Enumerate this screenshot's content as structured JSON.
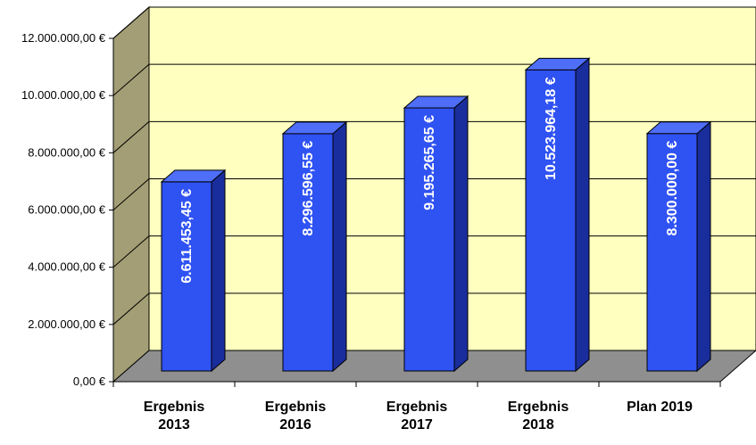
{
  "chart_data": {
    "type": "bar",
    "title": "",
    "xlabel": "",
    "ylabel": "",
    "categories": [
      [
        "Ergebnis",
        "2013"
      ],
      [
        "Ergebnis",
        "2016"
      ],
      [
        "Ergebnis",
        "2017"
      ],
      [
        "Ergebnis",
        "2018"
      ],
      [
        "Plan 2019"
      ]
    ],
    "values": [
      6611453.45,
      8296596.55,
      9195265.65,
      10523964.18,
      8300000.0
    ],
    "value_labels": [
      "6.611.453,45 €",
      "8.296.596,55 €",
      "9.195.265,65 €",
      "10.523.964,18 €",
      "8.300.000,00 €"
    ],
    "ylim": [
      0,
      12000000
    ],
    "yticks": [
      {
        "value": 0,
        "label": "0,00 €"
      },
      {
        "value": 2000000,
        "label": "2.000.000,00 €"
      },
      {
        "value": 4000000,
        "label": "4.000.000,00 €"
      },
      {
        "value": 6000000,
        "label": "6.000.000,00 €"
      },
      {
        "value": 8000000,
        "label": "8.000.000,00 €"
      },
      {
        "value": 10000000,
        "label": "10.000.000,00 €"
      },
      {
        "value": 12000000,
        "label": "12.000.000,00 €"
      }
    ],
    "grid": true,
    "style": "3d",
    "colors": {
      "bar_front": "#2f52f2",
      "bar_side": "#1a2d9c",
      "bar_top": "#4e6ef8",
      "back_wall": "#ffffc0",
      "side_wall": "#a39e75",
      "floor": "#8f8f8f",
      "gridline": "#000000"
    }
  }
}
